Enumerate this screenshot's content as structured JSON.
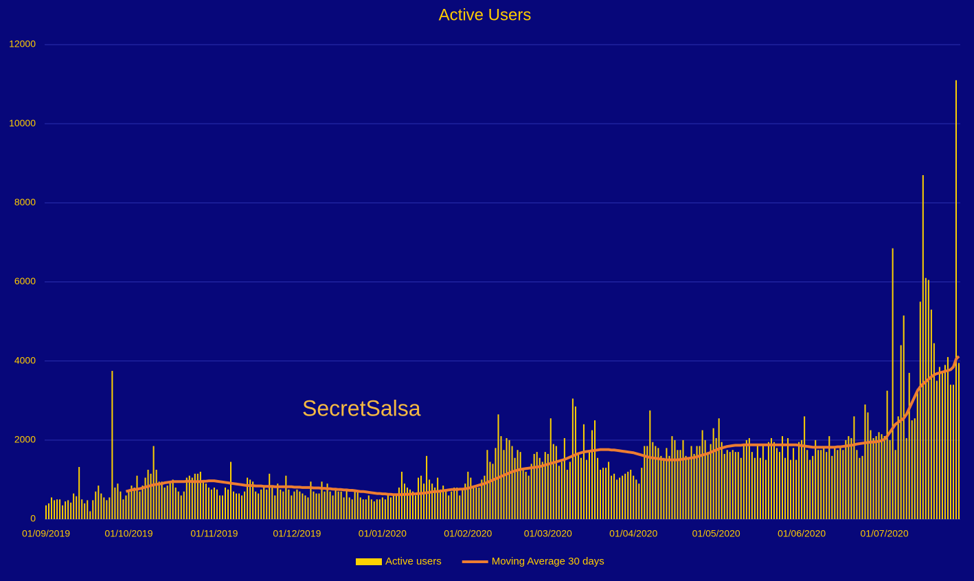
{
  "chart_data": {
    "type": "bar",
    "title": "Active Users",
    "annotation": "SecretSalsa",
    "categories": [
      "01/09/2019",
      null,
      null,
      null,
      null,
      null,
      null,
      null,
      null,
      null,
      null,
      null,
      null,
      null,
      null,
      null,
      null,
      null,
      null,
      null,
      null,
      null,
      null,
      null,
      null,
      null,
      null,
      null,
      null,
      null,
      "01/10/2019",
      null,
      null,
      null,
      null,
      null,
      null,
      null,
      null,
      null,
      null,
      null,
      null,
      null,
      null,
      null,
      null,
      null,
      null,
      null,
      null,
      null,
      null,
      null,
      null,
      null,
      null,
      null,
      null,
      null,
      null,
      "01/11/2019",
      null,
      null,
      null,
      null,
      null,
      null,
      null,
      null,
      null,
      null,
      null,
      null,
      null,
      null,
      null,
      null,
      null,
      null,
      null,
      null,
      null,
      null,
      null,
      null,
      null,
      null,
      null,
      null,
      null,
      "01/12/2019",
      null,
      null,
      null,
      null,
      null,
      null,
      null,
      null,
      null,
      null,
      null,
      null,
      null,
      null,
      null,
      null,
      null,
      null,
      null,
      null,
      null,
      null,
      null,
      null,
      null,
      null,
      null,
      null,
      null,
      null,
      "01/01/2020",
      null,
      null,
      null,
      null,
      null,
      null,
      null,
      null,
      null,
      null,
      null,
      null,
      null,
      null,
      null,
      null,
      null,
      null,
      null,
      null,
      null,
      null,
      null,
      null,
      null,
      null,
      null,
      null,
      null,
      null,
      "01/02/2020",
      null,
      null,
      null,
      null,
      null,
      null,
      null,
      null,
      null,
      null,
      null,
      null,
      null,
      null,
      null,
      null,
      null,
      null,
      null,
      null,
      null,
      null,
      null,
      null,
      null,
      null,
      null,
      null,
      "01/03/2020",
      null,
      null,
      null,
      null,
      null,
      null,
      null,
      null,
      null,
      null,
      null,
      null,
      null,
      null,
      null,
      null,
      null,
      null,
      null,
      null,
      null,
      null,
      null,
      null,
      null,
      null,
      null,
      null,
      null,
      null,
      "01/04/2020",
      null,
      null,
      null,
      null,
      null,
      null,
      null,
      null,
      null,
      null,
      null,
      null,
      null,
      null,
      null,
      null,
      null,
      null,
      null,
      null,
      null,
      null,
      null,
      null,
      null,
      null,
      null,
      null,
      null,
      "01/05/2020",
      null,
      null,
      null,
      null,
      null,
      null,
      null,
      null,
      null,
      null,
      null,
      null,
      null,
      null,
      null,
      null,
      null,
      null,
      null,
      null,
      null,
      null,
      null,
      null,
      null,
      null,
      null,
      null,
      null,
      null,
      "01/06/2020",
      null,
      null,
      null,
      null,
      null,
      null,
      null,
      null,
      null,
      null,
      null,
      null,
      null,
      null,
      null,
      null,
      null,
      null,
      null,
      null,
      null,
      null,
      null,
      null,
      null,
      null,
      null,
      null,
      null,
      "01/07/2020",
      null,
      null,
      null,
      null,
      null,
      null,
      null,
      null,
      null,
      null,
      null,
      null,
      null,
      null,
      null,
      null,
      null,
      null,
      null,
      null,
      null,
      null,
      null,
      null,
      null,
      null,
      null
    ],
    "series": [
      {
        "name": "Active users",
        "type": "bar",
        "color": "#ffd200",
        "values": [
          350,
          400,
          550,
          480,
          500,
          500,
          350,
          450,
          480,
          420,
          650,
          580,
          1320,
          500,
          400,
          480,
          200,
          480,
          700,
          850,
          650,
          550,
          480,
          550,
          3750,
          800,
          900,
          700,
          500,
          600,
          700,
          850,
          800,
          1100,
          700,
          850,
          1050,
          1250,
          1150,
          1850,
          1250,
          950,
          950,
          800,
          850,
          950,
          1000,
          800,
          700,
          600,
          700,
          1050,
          1100,
          1050,
          1150,
          1150,
          1200,
          950,
          900,
          800,
          750,
          800,
          750,
          600,
          600,
          800,
          750,
          1450,
          700,
          650,
          650,
          600,
          700,
          1050,
          1000,
          950,
          700,
          650,
          750,
          800,
          750,
          1150,
          850,
          600,
          900,
          750,
          700,
          1100,
          750,
          600,
          700,
          750,
          700,
          650,
          600,
          550,
          950,
          700,
          650,
          650,
          950,
          700,
          900,
          700,
          600,
          750,
          700,
          700,
          550,
          750,
          550,
          500,
          750,
          700,
          550,
          500,
          500,
          600,
          500,
          450,
          500,
          500,
          550,
          500,
          600,
          550,
          600,
          650,
          800,
          1200,
          900,
          800,
          750,
          700,
          600,
          1050,
          1100,
          900,
          1600,
          1000,
          900,
          800,
          1050,
          750,
          850,
          700,
          600,
          700,
          800,
          800,
          600,
          750,
          900,
          1200,
          1050,
          850,
          800,
          800,
          1000,
          1100,
          1750,
          1450,
          1400,
          1800,
          2650,
          2100,
          1750,
          2050,
          2000,
          1850,
          1550,
          1750,
          1700,
          1250,
          1200,
          1100,
          1400,
          1650,
          1700,
          1550,
          1450,
          1700,
          1650,
          2550,
          1900,
          1850,
          1350,
          1450,
          2050,
          1250,
          1450,
          3050,
          2850,
          1650,
          1550,
          2400,
          1500,
          1700,
          2250,
          2500,
          1550,
          1250,
          1300,
          1300,
          1450,
          1100,
          1150,
          1000,
          1050,
          1100,
          1150,
          1200,
          1250,
          1100,
          1000,
          900,
          1300,
          1850,
          1850,
          2750,
          1950,
          1850,
          1800,
          1600,
          1550,
          1800,
          1600,
          2100,
          2000,
          1750,
          1750,
          2000,
          1600,
          1550,
          1850,
          1650,
          1850,
          1850,
          2250,
          2000,
          1700,
          1900,
          2300,
          2050,
          2550,
          1950,
          1650,
          1750,
          1700,
          1750,
          1700,
          1700,
          1550,
          1900,
          2000,
          2050,
          1700,
          1550,
          1900,
          1550,
          1850,
          1500,
          1950,
          2050,
          1950,
          1800,
          1700,
          2100,
          1550,
          2050,
          1500,
          1800,
          1500,
          1950,
          2000,
          2600,
          1750,
          1500,
          1600,
          2000,
          1750,
          1750,
          1800,
          1700,
          2100,
          1600,
          1800,
          1750,
          1800,
          1750,
          2000,
          2100,
          2050,
          2600,
          1750,
          1550,
          1600,
          2900,
          2700,
          2250,
          2050,
          2100,
          2200,
          2150,
          2100,
          3250,
          2000,
          6850,
          1750,
          2600,
          4400,
          5150,
          2050,
          3700,
          2500,
          2550,
          3300,
          5500,
          8700,
          6100,
          6050,
          5300,
          4450,
          3500,
          3850,
          3750,
          3900,
          4100,
          3400,
          3400,
          11100,
          3950
        ]
      },
      {
        "name": "Moving Average 30 days",
        "type": "line",
        "color": "#ed7d31",
        "values": [
          null,
          null,
          null,
          null,
          null,
          null,
          null,
          null,
          null,
          null,
          null,
          null,
          null,
          null,
          null,
          null,
          null,
          null,
          null,
          null,
          null,
          null,
          null,
          null,
          null,
          null,
          null,
          null,
          null,
          700,
          720,
          740,
          750,
          760,
          770,
          790,
          810,
          830,
          850,
          870,
          880,
          890,
          900,
          920,
          930,
          940,
          950,
          950,
          950,
          950,
          950,
          960,
          960,
          950,
          950,
          950,
          950,
          960,
          960,
          970,
          970,
          970,
          960,
          950,
          940,
          930,
          920,
          910,
          900,
          890,
          880,
          870,
          860,
          850,
          850,
          850,
          840,
          840,
          840,
          830,
          830,
          830,
          830,
          820,
          820,
          820,
          820,
          820,
          820,
          820,
          810,
          810,
          810,
          800,
          800,
          800,
          800,
          790,
          790,
          790,
          780,
          780,
          770,
          770,
          760,
          760,
          750,
          750,
          740,
          740,
          730,
          730,
          720,
          710,
          700,
          700,
          690,
          680,
          670,
          660,
          650,
          650,
          640,
          640,
          630,
          630,
          620,
          620,
          620,
          620,
          630,
          630,
          630,
          640,
          640,
          650,
          650,
          660,
          670,
          680,
          690,
          700,
          700,
          710,
          720,
          730,
          740,
          750,
          750,
          750,
          760,
          760,
          770,
          780,
          800,
          820,
          840,
          860,
          880,
          900,
          930,
          960,
          990,
          1020,
          1050,
          1080,
          1110,
          1140,
          1170,
          1200,
          1220,
          1240,
          1260,
          1270,
          1280,
          1290,
          1300,
          1310,
          1320,
          1330,
          1350,
          1370,
          1390,
          1410,
          1430,
          1450,
          1470,
          1490,
          1510,
          1540,
          1570,
          1600,
          1630,
          1660,
          1680,
          1700,
          1710,
          1720,
          1730,
          1740,
          1750,
          1760,
          1760,
          1760,
          1760,
          1750,
          1750,
          1740,
          1730,
          1720,
          1710,
          1700,
          1690,
          1680,
          1660,
          1640,
          1620,
          1600,
          1580,
          1560,
          1550,
          1540,
          1530,
          1520,
          1510,
          1500,
          1500,
          1500,
          1500,
          1500,
          1510,
          1520,
          1530,
          1540,
          1550,
          1560,
          1580,
          1600,
          1620,
          1640,
          1660,
          1690,
          1720,
          1750,
          1780,
          1800,
          1820,
          1840,
          1850,
          1860,
          1870,
          1870,
          1870,
          1880,
          1880,
          1880,
          1880,
          1880,
          1880,
          1880,
          1880,
          1880,
          1880,
          1880,
          1880,
          1880,
          1880,
          1880,
          1880,
          1880,
          1880,
          1880,
          1880,
          1870,
          1860,
          1850,
          1840,
          1830,
          1820,
          1820,
          1820,
          1820,
          1820,
          1820,
          1820,
          1820,
          1820,
          1830,
          1830,
          1840,
          1850,
          1860,
          1870,
          1880,
          1900,
          1910,
          1920,
          1930,
          1940,
          1950,
          1950,
          1960,
          1970,
          1990,
          2020,
          2100,
          2200,
          2300,
          2400,
          2450,
          2500,
          2550,
          2650,
          2800,
          2950,
          3100,
          3250,
          3350,
          3420,
          3480,
          3540,
          3600,
          3650,
          3680,
          3700,
          3720,
          3740,
          3760,
          3780,
          3850,
          4050,
          4120
        ]
      }
    ],
    "ylim": [
      0,
      12000
    ],
    "yticks": [
      0,
      2000,
      4000,
      6000,
      8000,
      10000,
      12000
    ],
    "grid": true,
    "legend": "bottom"
  }
}
